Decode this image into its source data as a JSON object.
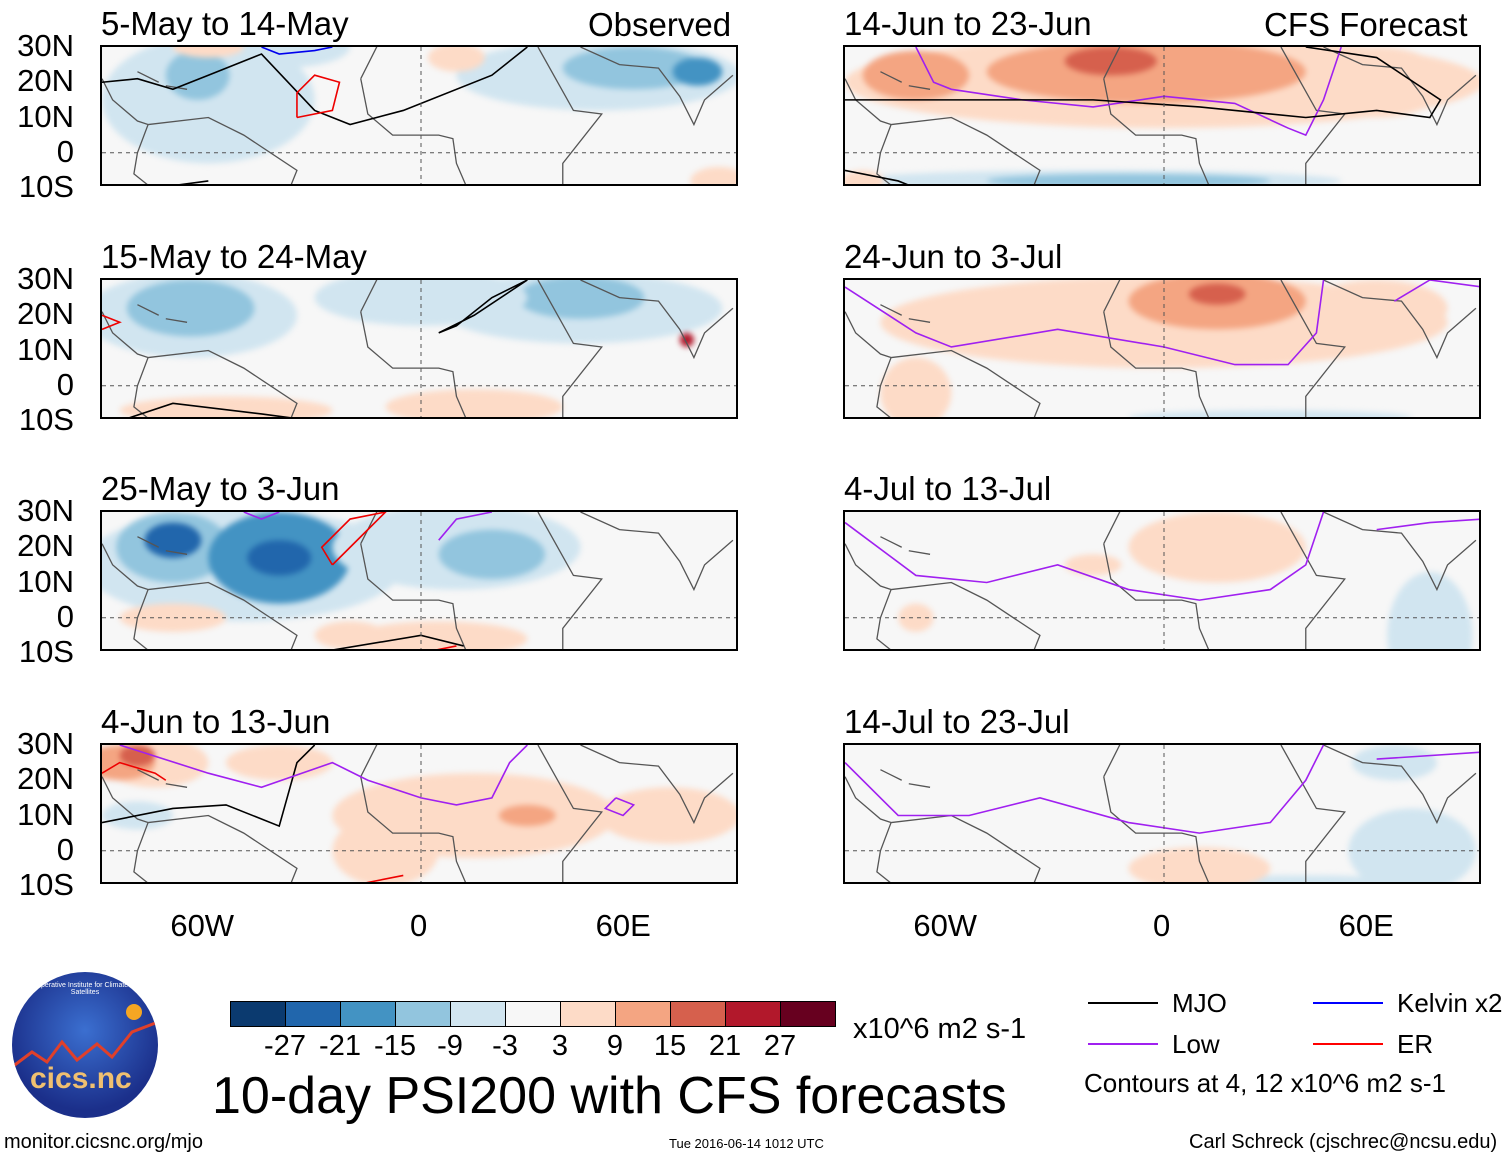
{
  "header": {
    "left_label": "Observed",
    "right_label": "CFS Forecast"
  },
  "panels": [
    {
      "title": "5-May to 14-May"
    },
    {
      "title": "15-May to 24-May"
    },
    {
      "title": "25-May to 3-Jun"
    },
    {
      "title": "4-Jun to 13-Jun"
    },
    {
      "title": "14-Jun to 23-Jun"
    },
    {
      "title": "24-Jun to 3-Jul"
    },
    {
      "title": "4-Jul to 13-Jul"
    },
    {
      "title": "14-Jul to 23-Jul"
    }
  ],
  "lat_ticks": [
    "30N",
    "20N",
    "10N",
    "0",
    "10S"
  ],
  "lon_ticks": [
    "60W",
    "0",
    "60E"
  ],
  "colorbar": {
    "colors": [
      "#0b3a6f",
      "#2166ac",
      "#4393c3",
      "#92c5de",
      "#d1e5f0",
      "#f7f7f7",
      "#fddbc7",
      "#f4a582",
      "#d6604d",
      "#b2182b",
      "#67001f"
    ],
    "labels": [
      "-27",
      "-21",
      "-15",
      "-9",
      "-3",
      "3",
      "9",
      "15",
      "21",
      "27"
    ],
    "units": "x10^6 m2 s-1"
  },
  "legend": {
    "items": [
      {
        "label": "MJO",
        "color": "#000000"
      },
      {
        "label": "Kelvin x2",
        "color": "#0000ff"
      },
      {
        "label": "Low",
        "color": "#a020f0"
      },
      {
        "label": "ER",
        "color": "#ff0000"
      }
    ],
    "contours_note": "Contours at 4, 12 x10^6 m2 s-1"
  },
  "logo_text": "cics.nc",
  "logo_ring_text": "Cooperative Institute for Climate and Satellites",
  "title": "10-day PSI200 with CFS forecasts",
  "footer": {
    "url": "monitor.cicsnc.org/mjo",
    "timestamp": "Tue 2016-06-14 1012 UTC",
    "author": "Carl Schreck (cjschrec@ncsu.edu)"
  }
}
